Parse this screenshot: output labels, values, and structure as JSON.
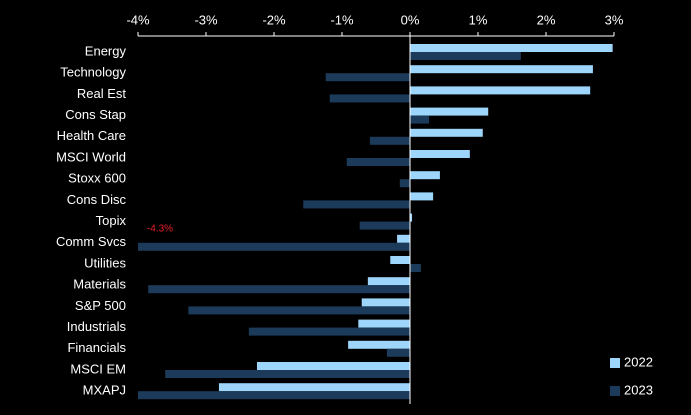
{
  "chart_data": {
    "type": "hbar",
    "categories": [
      "Energy",
      "Technology",
      "Real Est",
      "Cons Stap",
      "Health Care",
      "MSCI World",
      "Stoxx 600",
      "Cons Disc",
      "Topix",
      "Comm Svcs",
      "Utilities",
      "Materials",
      "S&P 500",
      "Industrials",
      "Financials",
      "MSCI EM",
      "MXAPJ"
    ],
    "series": [
      {
        "name": "2022",
        "color": "#9dd5fb",
        "values": [
          2.98,
          2.69,
          2.65,
          1.15,
          1.07,
          0.88,
          0.44,
          0.34,
          0.03,
          -0.19,
          -0.29,
          -0.62,
          -0.71,
          -0.76,
          -0.91,
          -2.25,
          -2.81
        ]
      },
      {
        "name": "2023",
        "color": "#1c3a5a",
        "values": [
          1.63,
          -1.24,
          -1.18,
          0.28,
          -0.59,
          -0.93,
          -0.15,
          -1.57,
          -0.74,
          -4.3,
          0.16,
          -3.85,
          -3.26,
          -2.37,
          -0.34,
          -3.6,
          -4.0
        ],
        "value_labels": [
          null,
          null,
          null,
          null,
          null,
          null,
          null,
          null,
          null,
          "-4.3%",
          null,
          null,
          null,
          null,
          null,
          null,
          null
        ]
      }
    ],
    "xlim": [
      -4,
      3
    ],
    "xticks": [
      {
        "value": -4,
        "label": "-4%"
      },
      {
        "value": -3,
        "label": "-3%"
      },
      {
        "value": -2,
        "label": "-2%"
      },
      {
        "value": -1,
        "label": "-1%"
      },
      {
        "value": 0,
        "label": "0%"
      },
      {
        "value": 1,
        "label": "1%"
      },
      {
        "value": 2,
        "label": "2%"
      },
      {
        "value": 3,
        "label": "3%"
      }
    ],
    "legend": "bottom-right"
  }
}
